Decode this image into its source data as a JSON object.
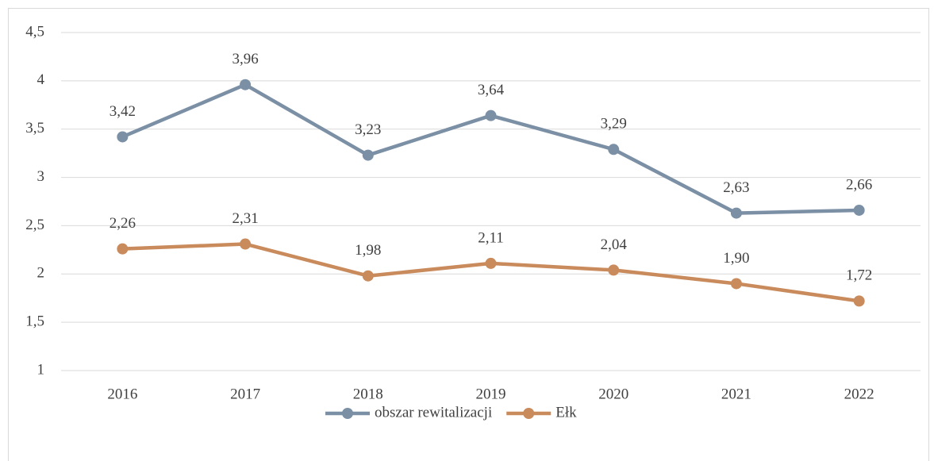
{
  "chart_data": {
    "type": "line",
    "categories": [
      "2016",
      "2017",
      "2018",
      "2019",
      "2020",
      "2021",
      "2022"
    ],
    "series": [
      {
        "name": "obszar rewitalizacji",
        "color": "#7b8fa5",
        "values": [
          3.42,
          3.96,
          3.23,
          3.64,
          3.29,
          2.63,
          2.66
        ],
        "value_labels": [
          "3,42",
          "3,96",
          "3,23",
          "3,64",
          "3,29",
          "2,63",
          "2,66"
        ]
      },
      {
        "name": "Ełk",
        "color": "#c98a5c",
        "values": [
          2.26,
          2.31,
          1.98,
          2.11,
          2.04,
          1.9,
          1.72
        ],
        "value_labels": [
          "2,26",
          "2,31",
          "1,98",
          "2,11",
          "2,04",
          "1,90",
          "1,72"
        ]
      }
    ],
    "ylim": [
      1,
      4.5
    ],
    "yticks": [
      1,
      {
        "value": 1.5,
        "label": "1,5"
      },
      2,
      {
        "value": 2.5,
        "label": "2,5"
      },
      3,
      {
        "value": 3.5,
        "label": "3,5"
      },
      4,
      {
        "value": 4.5,
        "label": "4,5"
      }
    ],
    "grid": true,
    "legend": "bottom"
  }
}
